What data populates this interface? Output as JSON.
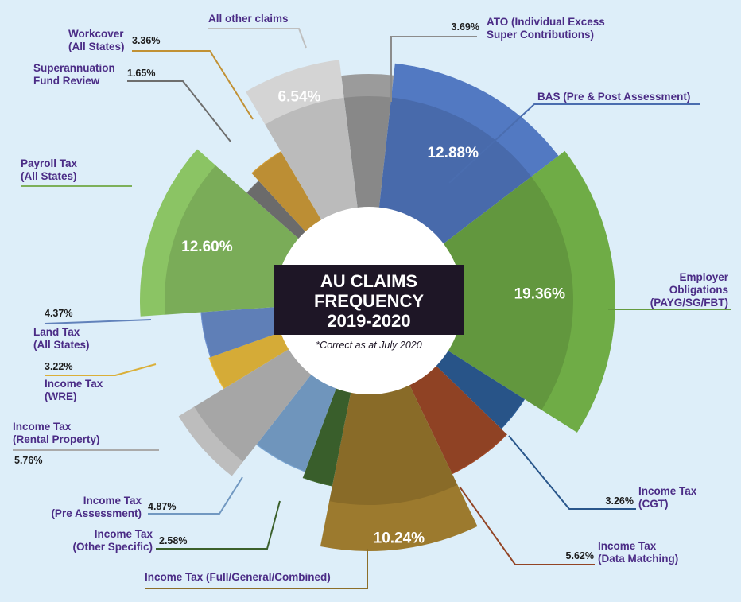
{
  "chart_data": {
    "type": "pie",
    "title_lines": [
      "AU CLAIMS",
      "FREQUENCY",
      "2019-2020"
    ],
    "subtitle": "*Correct as at July 2020",
    "slices": [
      {
        "label_lines": [
          "ATO (Individual Excess",
          "Super Contributions)"
        ],
        "value": 3.69,
        "display": "3.69%",
        "color": "#9b9b9b"
      },
      {
        "label_lines": [
          "BAS (Pre & Post Assessment)"
        ],
        "value": 12.88,
        "display": "12.88%",
        "color": "#5279c2"
      },
      {
        "label_lines": [
          "Employer",
          "Obligations",
          "(PAYG/SG/FBT)"
        ],
        "value": 19.36,
        "display": "19.36%",
        "color": "#6fac46"
      },
      {
        "label_lines": [
          "Income Tax",
          "(CGT)"
        ],
        "value": 3.26,
        "display": "3.26%",
        "color": "#2e5f9a"
      },
      {
        "label_lines": [
          "Income Tax",
          "(Data Matching)"
        ],
        "value": 5.62,
        "display": "5.62%",
        "color": "#a24b29"
      },
      {
        "label_lines": [
          "Income Tax (Full/General/Combined)"
        ],
        "value": 10.24,
        "display": "10.24%",
        "color": "#9c7a2e"
      },
      {
        "label_lines": [
          "Income Tax",
          "(Other Specific)"
        ],
        "value": 2.58,
        "display": "2.58%",
        "color": "#416b31"
      },
      {
        "label_lines": [
          "Income Tax",
          "(Pre Assessment)"
        ],
        "value": 4.87,
        "display": "4.87%",
        "color": "#7ea9d6"
      },
      {
        "label_lines": [
          "Income Tax",
          "(Rental Property)"
        ],
        "value": 5.76,
        "display": "5.76%",
        "color": "#bdbdbd"
      },
      {
        "label_lines": [
          "Income Tax",
          "(WRE)"
        ],
        "value": 3.22,
        "display": "3.22%",
        "color": "#f2c23f"
      },
      {
        "label_lines": [
          "Land Tax",
          "(All States)"
        ],
        "value": 4.37,
        "display": "4.37%",
        "color": "#6c90d0"
      },
      {
        "label_lines": [
          "Payroll Tax",
          "(All States)"
        ],
        "value": 12.6,
        "display": "12.60%",
        "color": "#8bc464"
      },
      {
        "label_lines": [
          "Superannuation",
          "Fund Review"
        ],
        "value": 1.65,
        "display": "1.65%",
        "color": "#7a7a7a"
      },
      {
        "label_lines": [
          "Workcover",
          "(All States)"
        ],
        "value": 3.36,
        "display": "3.36%",
        "color": "#d6a13b"
      },
      {
        "label_lines": [
          "All other claims"
        ],
        "value": 6.54,
        "display": "6.54%",
        "color": "#d4d4d4"
      }
    ]
  }
}
